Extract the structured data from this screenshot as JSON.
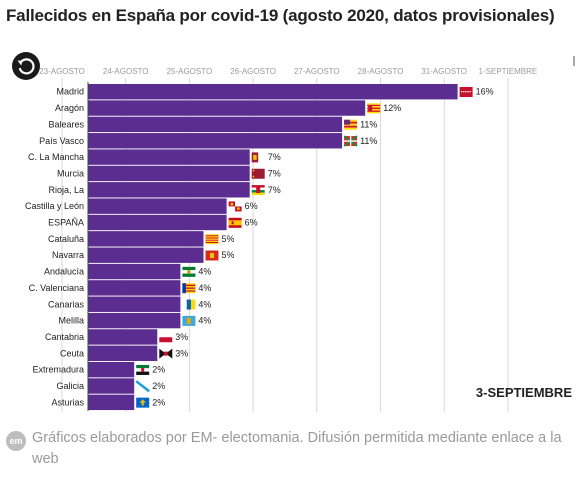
{
  "title": "Fallecidos en España por covid-19 (agosto 2020, datos provisionales)",
  "current_date_label": "3-SEPTIEMBRE",
  "footer": {
    "logo": "em",
    "text": "Gráficos elaborados por EM- electomania. Difusión permitida mediante enlace a la web"
  },
  "colors": {
    "bar": "#5b2d91",
    "grid": "#d9d9d9",
    "axis_text": "#9a9a9a"
  },
  "chart_data": {
    "type": "bar",
    "orientation": "horizontal",
    "x_ticks": [
      "23-AGOSTO",
      "24-AGOSTO",
      "25-AGOSTO",
      "26-AGOSTO",
      "27-AGOSTO",
      "28-AGOSTO",
      "31-AGOSTO",
      "1-SEPTIEMBRE"
    ],
    "categories": [
      "Madrid",
      "Aragón",
      "Baleares",
      "País Vasco",
      "C. La Mancha",
      "Murcia",
      "Rioja, La",
      "Castilla y León",
      "ESPAÑA",
      "Cataluña",
      "Navarra",
      "Andalucía",
      "C. Valenciana",
      "Canarias",
      "Melilla",
      "Cantabria",
      "Ceuta",
      "Extremadura",
      "Galicia",
      "Asturias"
    ],
    "values": [
      16,
      12,
      11,
      11,
      7,
      7,
      7,
      6,
      6,
      5,
      5,
      4,
      4,
      4,
      4,
      3,
      3,
      2,
      2,
      2
    ],
    "value_labels": [
      "16%",
      "12%",
      "11%",
      "11%",
      "7%",
      "7%",
      "7%",
      "6%",
      "6%",
      "5%",
      "5%",
      "4%",
      "4%",
      "4%",
      "4%",
      "3%",
      "3%",
      "2%",
      "2%",
      "2%"
    ],
    "flag_icons": [
      "madrid-flag-icon",
      "aragon-flag-icon",
      "baleares-flag-icon",
      "pais-vasco-flag-icon",
      "castilla-la-mancha-flag-icon",
      "murcia-flag-icon",
      "la-rioja-flag-icon",
      "castilla-y-leon-flag-icon",
      "spain-flag-icon",
      "cataluna-flag-icon",
      "navarra-flag-icon",
      "andalucia-flag-icon",
      "comunidad-valenciana-flag-icon",
      "canarias-flag-icon",
      "melilla-flag-icon",
      "cantabria-flag-icon",
      "ceuta-flag-icon",
      "extremadura-flag-icon",
      "galicia-flag-icon",
      "asturias-flag-icon"
    ]
  }
}
